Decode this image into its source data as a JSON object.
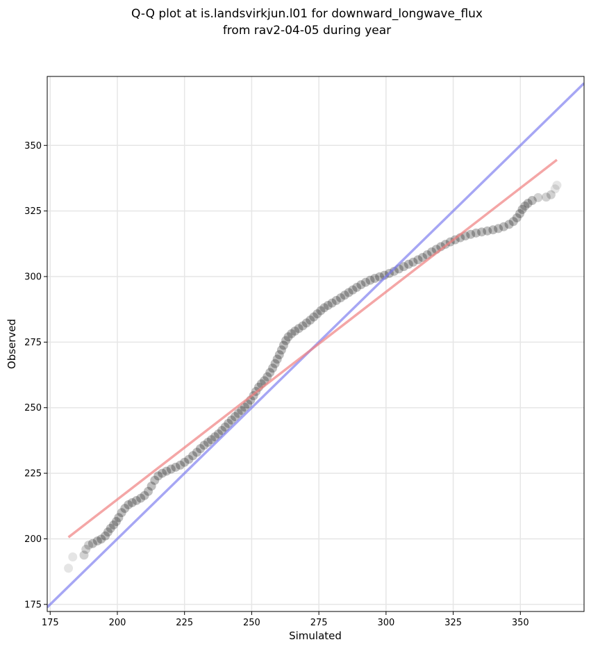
{
  "chart_data": {
    "type": "scatter",
    "title": "Q-Q plot at is.landsvirkjun.l01 for downward_longwave_flux",
    "subtitle": "from rav2-04-05 during year",
    "xlabel": "Simulated",
    "ylabel": "Observed",
    "xlim": [
      173.9,
      373.7
    ],
    "ylim": [
      172.3,
      376.3
    ],
    "xticks": [
      175,
      200,
      225,
      250,
      275,
      300,
      325,
      350
    ],
    "yticks": [
      175,
      200,
      225,
      250,
      275,
      300,
      325,
      350
    ],
    "grid": true,
    "colors": {
      "points": "#000000",
      "identity_line": "#7777ee",
      "fit_line": "#f08080",
      "grid": "#e6e6e6"
    },
    "points": [
      [
        181.8,
        188.8
      ],
      [
        183.4,
        193.1
      ],
      [
        187.6,
        193.8
      ],
      [
        188.3,
        196.0
      ],
      [
        189.3,
        197.6
      ],
      [
        190.8,
        198.2
      ],
      [
        192.6,
        199.2
      ],
      [
        194.0,
        199.9
      ],
      [
        195.5,
        201.1
      ],
      [
        196.5,
        202.6
      ],
      [
        197.5,
        204.0
      ],
      [
        198.6,
        205.3
      ],
      [
        199.6,
        206.6
      ],
      [
        200.5,
        208.1
      ],
      [
        201.6,
        210.0
      ],
      [
        202.8,
        211.6
      ],
      [
        204.1,
        213.0
      ],
      [
        205.5,
        213.8
      ],
      [
        207.1,
        214.6
      ],
      [
        208.7,
        215.5
      ],
      [
        210.1,
        216.5
      ],
      [
        211.5,
        218.1
      ],
      [
        212.7,
        220.1
      ],
      [
        213.9,
        222.3
      ],
      [
        215.2,
        224.0
      ],
      [
        216.7,
        225.0
      ],
      [
        218.3,
        225.8
      ],
      [
        220.0,
        226.6
      ],
      [
        221.7,
        227.3
      ],
      [
        223.4,
        228.1
      ],
      [
        225.0,
        229.2
      ],
      [
        226.6,
        230.3
      ],
      [
        228.1,
        231.7
      ],
      [
        229.6,
        233.0
      ],
      [
        230.9,
        234.4
      ],
      [
        232.3,
        235.7
      ],
      [
        233.7,
        236.8
      ],
      [
        235.0,
        237.8
      ],
      [
        236.3,
        238.9
      ],
      [
        237.6,
        240.0
      ],
      [
        238.9,
        241.3
      ],
      [
        240.1,
        242.6
      ],
      [
        241.3,
        244.0
      ],
      [
        242.5,
        245.3
      ],
      [
        243.8,
        246.6
      ],
      [
        245.0,
        247.8
      ],
      [
        246.2,
        249.0
      ],
      [
        247.4,
        250.2
      ],
      [
        248.5,
        251.4
      ],
      [
        249.6,
        252.9
      ],
      [
        250.7,
        254.6
      ],
      [
        251.6,
        256.2
      ],
      [
        252.6,
        257.8
      ],
      [
        253.6,
        259.1
      ],
      [
        254.7,
        260.3
      ],
      [
        255.8,
        261.8
      ],
      [
        256.8,
        263.4
      ],
      [
        257.8,
        265.1
      ],
      [
        258.7,
        266.8
      ],
      [
        259.5,
        268.5
      ],
      [
        260.3,
        270.2
      ],
      [
        261.1,
        272.0
      ],
      [
        261.9,
        273.8
      ],
      [
        262.7,
        275.6
      ],
      [
        263.6,
        277.0
      ],
      [
        264.8,
        278.2
      ],
      [
        266.1,
        279.2
      ],
      [
        267.5,
        280.2
      ],
      [
        269.0,
        281.2
      ],
      [
        270.4,
        282.3
      ],
      [
        271.8,
        283.4
      ],
      [
        273.1,
        284.6
      ],
      [
        274.4,
        285.8
      ],
      [
        275.7,
        287.0
      ],
      [
        277.0,
        288.1
      ],
      [
        278.4,
        289.0
      ],
      [
        279.9,
        289.9
      ],
      [
        281.5,
        290.9
      ],
      [
        283.1,
        291.9
      ],
      [
        284.6,
        292.9
      ],
      [
        286.1,
        293.9
      ],
      [
        287.6,
        294.9
      ],
      [
        289.1,
        295.9
      ],
      [
        290.7,
        296.9
      ],
      [
        292.4,
        297.8
      ],
      [
        294.1,
        298.6
      ],
      [
        295.8,
        299.3
      ],
      [
        297.6,
        299.9
      ],
      [
        299.4,
        300.5
      ],
      [
        301.2,
        301.2
      ],
      [
        303.0,
        302.0
      ],
      [
        304.8,
        302.9
      ],
      [
        306.6,
        303.8
      ],
      [
        308.4,
        304.7
      ],
      [
        310.1,
        305.5
      ],
      [
        311.9,
        306.4
      ],
      [
        313.6,
        307.3
      ],
      [
        315.3,
        308.3
      ],
      [
        317.0,
        309.4
      ],
      [
        318.7,
        310.4
      ],
      [
        320.4,
        311.4
      ],
      [
        322.1,
        312.3
      ],
      [
        323.9,
        313.2
      ],
      [
        325.7,
        314.0
      ],
      [
        327.6,
        314.8
      ],
      [
        329.5,
        315.5
      ],
      [
        331.5,
        316.1
      ],
      [
        333.5,
        316.6
      ],
      [
        335.6,
        317.0
      ],
      [
        337.7,
        317.4
      ],
      [
        339.8,
        317.8
      ],
      [
        341.8,
        318.3
      ],
      [
        343.8,
        319.0
      ],
      [
        345.8,
        319.9
      ],
      [
        347.4,
        321.0
      ],
      [
        348.7,
        322.4
      ],
      [
        349.8,
        324.0
      ],
      [
        350.7,
        325.6
      ],
      [
        351.7,
        326.9
      ],
      [
        352.8,
        327.9
      ],
      [
        354.4,
        329.0
      ],
      [
        356.6,
        330.1
      ],
      [
        359.6,
        330.3
      ],
      [
        361.4,
        331.2
      ],
      [
        362.9,
        333.4
      ],
      [
        363.6,
        334.8
      ]
    ],
    "identity_line": [
      [
        173.9,
        173.9
      ],
      [
        373.7,
        373.7
      ]
    ],
    "fit_line": [
      [
        181.8,
        200.6
      ],
      [
        363.6,
        344.5
      ]
    ]
  }
}
